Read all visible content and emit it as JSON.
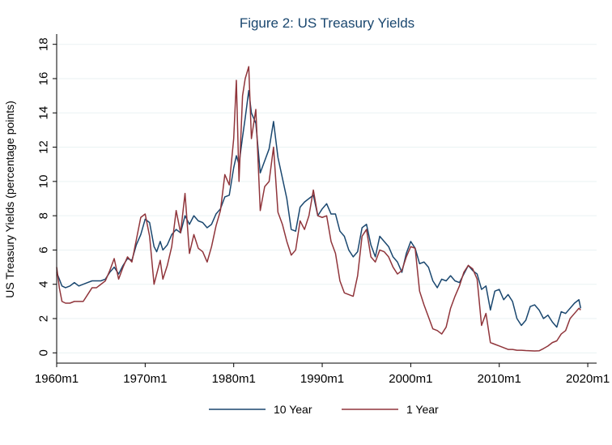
{
  "chart_data": {
    "type": "line",
    "title": "Figure 2: US Treasury Yields",
    "xlabel": "",
    "ylabel": "US Treasury Yields (percentage points)",
    "xlim": [
      1960.0,
      2021.0
    ],
    "ylim": [
      -0.6,
      18.6
    ],
    "x_ticks": [
      {
        "value": 1960,
        "label": "1960m1"
      },
      {
        "value": 1970,
        "label": "1970m1"
      },
      {
        "value": 1980,
        "label": "1980m1"
      },
      {
        "value": 1990,
        "label": "1990m1"
      },
      {
        "value": 2000,
        "label": "2000m1"
      },
      {
        "value": 2010,
        "label": "2010m1"
      },
      {
        "value": 2020,
        "label": "2020m1"
      }
    ],
    "y_ticks": [
      0,
      2,
      4,
      6,
      8,
      10,
      12,
      14,
      16,
      18
    ],
    "grid": true,
    "legend": "bottom",
    "series": [
      {
        "name": "10 Year",
        "color": "#1a476f",
        "x": [
          1960.0,
          1960.3,
          1960.6,
          1961.0,
          1961.5,
          1962.0,
          1962.5,
          1963.0,
          1963.5,
          1964.0,
          1964.5,
          1965.0,
          1965.5,
          1966.0,
          1966.5,
          1967.0,
          1967.5,
          1968.0,
          1968.5,
          1969.0,
          1969.5,
          1970.0,
          1970.5,
          1971.0,
          1971.3,
          1971.7,
          1972.0,
          1972.5,
          1973.0,
          1973.5,
          1974.0,
          1974.5,
          1975.0,
          1975.5,
          1976.0,
          1976.5,
          1977.0,
          1977.5,
          1978.0,
          1978.5,
          1979.0,
          1979.5,
          1980.0,
          1980.3,
          1980.6,
          1981.0,
          1981.3,
          1981.7,
          1982.0,
          1982.5,
          1983.0,
          1983.5,
          1984.0,
          1984.5,
          1985.0,
          1985.5,
          1986.0,
          1986.5,
          1987.0,
          1987.5,
          1988.0,
          1988.5,
          1989.0,
          1989.5,
          1990.0,
          1990.5,
          1991.0,
          1991.5,
          1992.0,
          1992.5,
          1993.0,
          1993.5,
          1994.0,
          1994.5,
          1995.0,
          1995.5,
          1996.0,
          1996.5,
          1997.0,
          1997.5,
          1998.0,
          1998.5,
          1999.0,
          1999.5,
          2000.0,
          2000.5,
          2001.0,
          2001.5,
          2002.0,
          2002.5,
          2003.0,
          2003.5,
          2004.0,
          2004.5,
          2005.0,
          2005.5,
          2006.0,
          2006.5,
          2007.0,
          2007.5,
          2008.0,
          2008.5,
          2009.0,
          2009.5,
          2010.0,
          2010.5,
          2011.0,
          2011.5,
          2012.0,
          2012.5,
          2013.0,
          2013.5,
          2014.0,
          2014.5,
          2015.0,
          2015.5,
          2016.0,
          2016.5,
          2017.0,
          2017.5,
          2018.0,
          2018.5,
          2019.0,
          2019.2
        ],
        "values": [
          4.7,
          4.3,
          3.9,
          3.8,
          3.9,
          4.1,
          3.9,
          4.0,
          4.1,
          4.2,
          4.2,
          4.2,
          4.3,
          4.7,
          5.0,
          4.6,
          5.1,
          5.5,
          5.4,
          6.3,
          6.9,
          7.8,
          7.6,
          6.2,
          5.9,
          6.5,
          6.0,
          6.3,
          6.9,
          7.2,
          7.0,
          8.0,
          7.5,
          8.0,
          7.7,
          7.6,
          7.3,
          7.5,
          8.1,
          8.4,
          9.1,
          9.2,
          10.8,
          11.5,
          11.0,
          12.6,
          13.7,
          15.3,
          14.0,
          13.4,
          10.5,
          11.2,
          11.9,
          13.5,
          11.4,
          10.2,
          9.0,
          7.2,
          7.1,
          8.5,
          8.8,
          9.0,
          9.2,
          8.0,
          8.4,
          8.7,
          8.1,
          8.1,
          7.1,
          6.8,
          6.0,
          5.6,
          5.9,
          7.3,
          7.5,
          6.3,
          5.6,
          6.8,
          6.5,
          6.2,
          5.6,
          5.3,
          4.7,
          5.8,
          6.5,
          6.1,
          5.2,
          5.3,
          5.0,
          4.2,
          3.8,
          4.3,
          4.2,
          4.5,
          4.2,
          4.1,
          4.6,
          5.1,
          4.8,
          4.6,
          3.7,
          3.9,
          2.5,
          3.6,
          3.7,
          3.1,
          3.4,
          3.0,
          2.0,
          1.6,
          1.9,
          2.7,
          2.8,
          2.5,
          2.0,
          2.2,
          1.8,
          1.5,
          2.4,
          2.3,
          2.6,
          2.9,
          3.1,
          2.6
        ]
      },
      {
        "name": "1 Year",
        "color": "#90353b",
        "x": [
          1960.0,
          1960.3,
          1960.6,
          1961.0,
          1961.5,
          1962.0,
          1962.5,
          1963.0,
          1963.5,
          1964.0,
          1964.5,
          1965.0,
          1965.5,
          1966.0,
          1966.5,
          1967.0,
          1967.5,
          1968.0,
          1968.5,
          1969.0,
          1969.5,
          1970.0,
          1970.5,
          1971.0,
          1971.3,
          1971.7,
          1972.0,
          1972.5,
          1973.0,
          1973.5,
          1974.0,
          1974.5,
          1975.0,
          1975.5,
          1976.0,
          1976.5,
          1977.0,
          1977.5,
          1978.0,
          1978.5,
          1979.0,
          1979.5,
          1980.0,
          1980.3,
          1980.6,
          1981.0,
          1981.3,
          1981.7,
          1982.0,
          1982.5,
          1983.0,
          1983.5,
          1984.0,
          1984.5,
          1985.0,
          1985.5,
          1986.0,
          1986.5,
          1987.0,
          1987.5,
          1988.0,
          1988.5,
          1989.0,
          1989.5,
          1990.0,
          1990.5,
          1991.0,
          1991.5,
          1992.0,
          1992.5,
          1993.0,
          1993.5,
          1994.0,
          1994.5,
          1995.0,
          1995.5,
          1996.0,
          1996.5,
          1997.0,
          1997.5,
          1998.0,
          1998.5,
          1999.0,
          1999.5,
          2000.0,
          2000.5,
          2001.0,
          2001.5,
          2002.0,
          2002.5,
          2003.0,
          2003.5,
          2004.0,
          2004.5,
          2005.0,
          2005.5,
          2006.0,
          2006.5,
          2007.0,
          2007.5,
          2008.0,
          2008.5,
          2009.0,
          2009.5,
          2010.0,
          2010.5,
          2011.0,
          2011.5,
          2012.0,
          2012.5,
          2013.0,
          2013.5,
          2014.0,
          2014.5,
          2015.0,
          2015.5,
          2016.0,
          2016.5,
          2017.0,
          2017.5,
          2018.0,
          2018.5,
          2019.0,
          2019.2
        ],
        "values": [
          5.0,
          3.8,
          3.0,
          2.9,
          2.9,
          3.0,
          3.0,
          3.0,
          3.4,
          3.8,
          3.8,
          4.0,
          4.2,
          4.8,
          5.5,
          4.3,
          5.0,
          5.6,
          5.3,
          6.6,
          7.9,
          8.1,
          6.8,
          4.0,
          4.6,
          5.4,
          4.3,
          5.1,
          6.2,
          8.3,
          7.0,
          9.3,
          5.8,
          6.9,
          6.1,
          5.9,
          5.3,
          6.2,
          7.4,
          8.3,
          10.4,
          9.8,
          12.5,
          15.9,
          10.0,
          15.0,
          16.0,
          16.7,
          12.5,
          14.2,
          8.3,
          9.7,
          10.0,
          12.0,
          8.2,
          7.5,
          6.5,
          5.7,
          6.0,
          7.7,
          7.2,
          8.0,
          9.5,
          8.0,
          7.9,
          8.0,
          6.5,
          5.8,
          4.2,
          3.5,
          3.4,
          3.3,
          4.5,
          6.8,
          7.2,
          5.6,
          5.3,
          6.0,
          5.9,
          5.6,
          5.0,
          4.6,
          4.8,
          5.6,
          6.2,
          6.1,
          3.6,
          2.8,
          2.1,
          1.4,
          1.3,
          1.1,
          1.5,
          2.6,
          3.3,
          3.9,
          4.7,
          5.1,
          4.9,
          4.3,
          1.6,
          2.3,
          0.6,
          0.5,
          0.4,
          0.3,
          0.2,
          0.2,
          0.15,
          0.15,
          0.13,
          0.12,
          0.11,
          0.12,
          0.25,
          0.4,
          0.6,
          0.7,
          1.1,
          1.3,
          2.0,
          2.3,
          2.6,
          2.5
        ]
      }
    ]
  }
}
